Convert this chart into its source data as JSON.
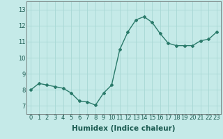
{
  "x": [
    0,
    1,
    2,
    3,
    4,
    5,
    6,
    7,
    8,
    9,
    10,
    11,
    12,
    13,
    14,
    15,
    16,
    17,
    18,
    19,
    20,
    21,
    22,
    23
  ],
  "y": [
    8.0,
    8.4,
    8.3,
    8.2,
    8.1,
    7.8,
    7.3,
    7.25,
    7.05,
    7.8,
    8.3,
    10.5,
    11.6,
    12.35,
    12.55,
    12.2,
    11.5,
    10.9,
    10.75,
    10.75,
    10.75,
    11.05,
    11.15,
    11.6
  ],
  "line_color": "#2a7a6a",
  "marker": "D",
  "marker_size": 2.0,
  "bg_color": "#c5eae8",
  "grid_color": "#a8d8d4",
  "axis_label_color": "#1a5a50",
  "tick_label_color": "#1a5a50",
  "xlabel": "Humidex (Indice chaleur)",
  "ylim": [
    6.5,
    13.5
  ],
  "xlim": [
    -0.5,
    23.5
  ],
  "yticks": [
    7,
    8,
    9,
    10,
    11,
    12,
    13
  ],
  "xticks": [
    0,
    1,
    2,
    3,
    4,
    5,
    6,
    7,
    8,
    9,
    10,
    11,
    12,
    13,
    14,
    15,
    16,
    17,
    18,
    19,
    20,
    21,
    22,
    23
  ],
  "tick_fontsize": 6,
  "xlabel_fontsize": 7.5,
  "line_width": 1.0
}
